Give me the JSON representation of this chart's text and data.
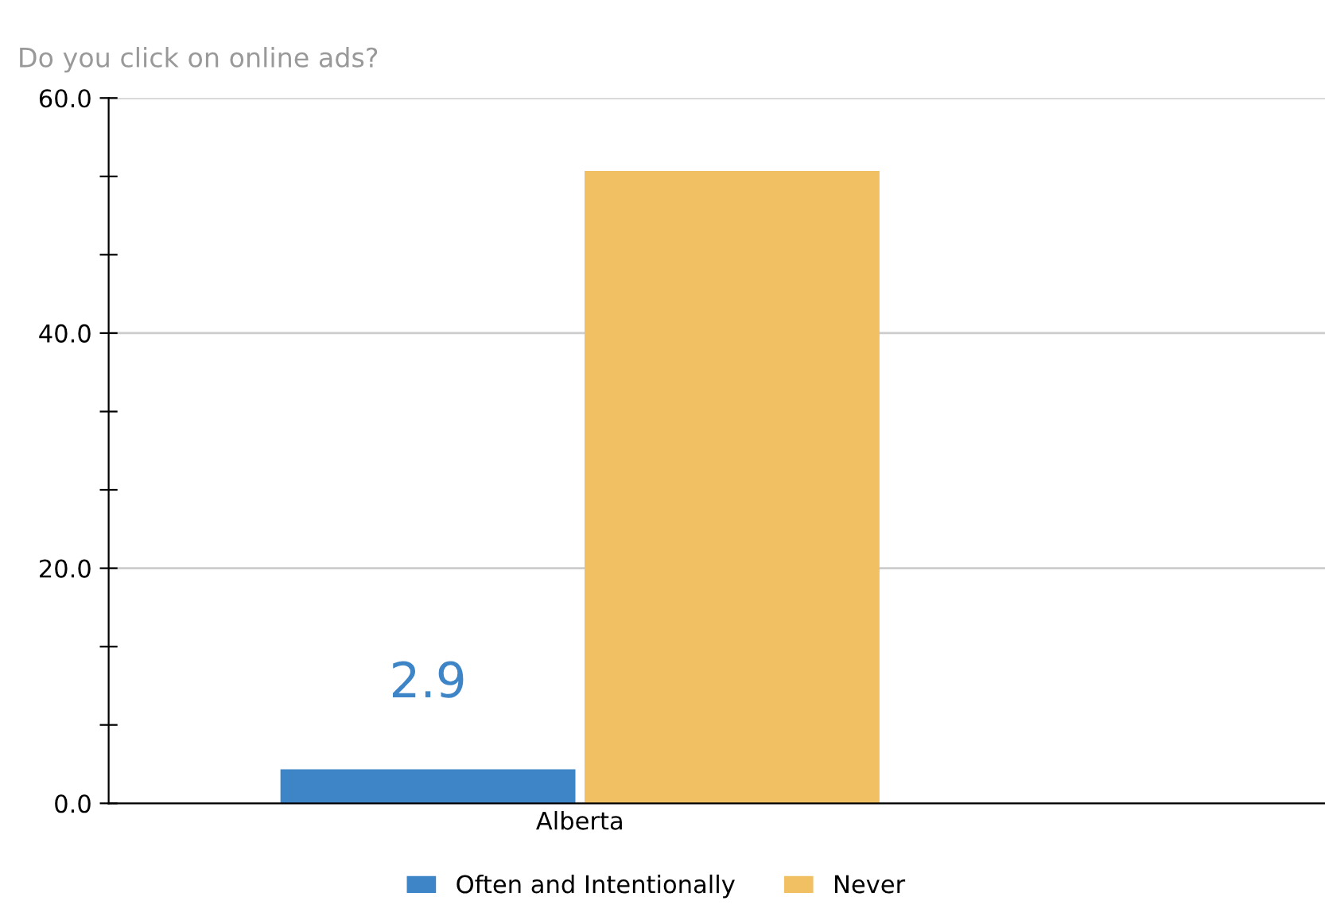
{
  "chart_data": {
    "type": "bar",
    "title": "Do you click on online ads?",
    "categories": [
      "Alberta"
    ],
    "series": [
      {
        "name": "Often and Intentionally",
        "color": "#3d85c6",
        "values": [
          2.9
        ],
        "value_labels": [
          "2.9"
        ]
      },
      {
        "name": "Never",
        "color": "#f1c062",
        "values": [
          53.8
        ],
        "value_labels": [
          null
        ]
      }
    ],
    "ylim": [
      0,
      60
    ],
    "yticks": [
      {
        "value": 0,
        "label": "0.0"
      },
      {
        "value": 6.67,
        "label": null
      },
      {
        "value": 13.33,
        "label": null
      },
      {
        "value": 20,
        "label": "20.0"
      },
      {
        "value": 26.67,
        "label": null
      },
      {
        "value": 33.33,
        "label": null
      },
      {
        "value": 40,
        "label": "40.0"
      },
      {
        "value": 46.67,
        "label": null
      },
      {
        "value": 53.33,
        "label": null
      },
      {
        "value": 60,
        "label": "60.0"
      }
    ],
    "grid": "y",
    "legend": "bottom"
  }
}
